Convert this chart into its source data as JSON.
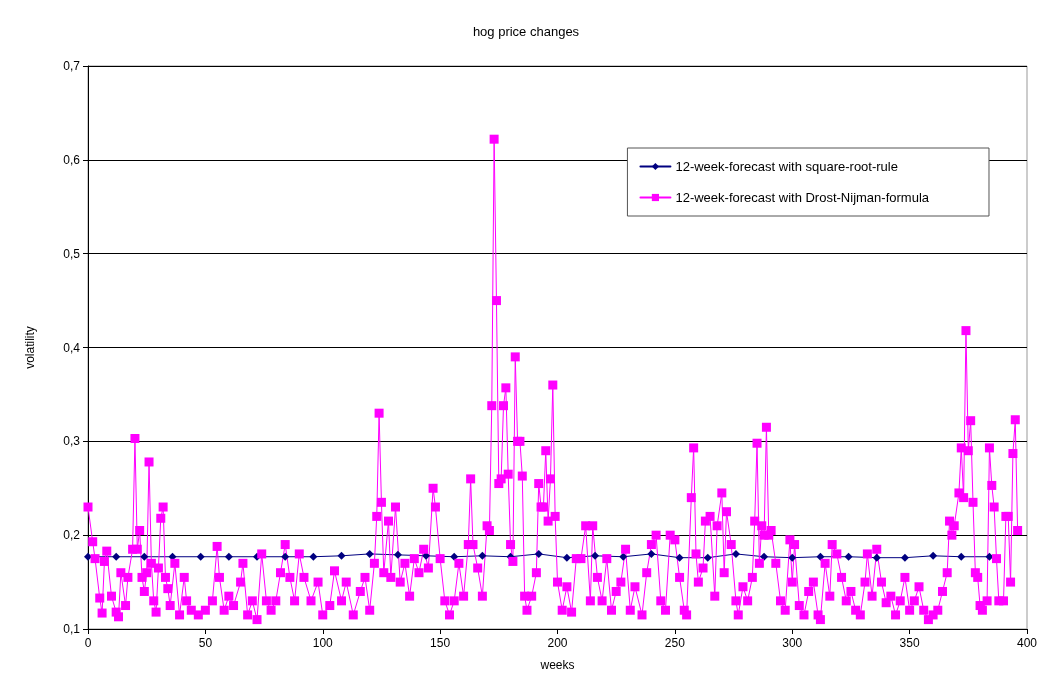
{
  "chart_data": {
    "type": "line",
    "title": "hog price changes",
    "xlabel": "weeks",
    "ylabel": "volatility",
    "xlim": [
      0,
      400
    ],
    "xticks": [
      0,
      50,
      100,
      150,
      200,
      250,
      300,
      350,
      400
    ],
    "ylim": [
      0.1,
      0.7
    ],
    "yticks": [
      {
        "value": 0.1,
        "label": "0,1"
      },
      {
        "value": 0.2,
        "label": "0,2"
      },
      {
        "value": 0.3,
        "label": "0,3"
      },
      {
        "value": 0.4,
        "label": "0,4"
      },
      {
        "value": 0.5,
        "label": "0,5"
      },
      {
        "value": 0.6,
        "label": "0,6"
      },
      {
        "value": 0.7,
        "label": "0,7"
      }
    ],
    "grid": "y",
    "legend": "top right",
    "line_style": "solid",
    "series": [
      {
        "name": "12-week-forecast with square-root-rule",
        "color": "#000080",
        "marker": "diamond",
        "x": [
          0,
          12,
          24,
          36,
          48,
          60,
          72,
          84,
          96,
          108,
          120,
          132,
          144,
          156,
          168,
          180,
          192,
          204,
          216,
          228,
          240,
          252,
          264,
          276,
          288,
          300,
          312,
          324,
          336,
          348,
          360,
          372,
          384
        ],
        "values": [
          0.177,
          0.177,
          0.177,
          0.177,
          0.177,
          0.177,
          0.177,
          0.177,
          0.177,
          0.178,
          0.18,
          0.179,
          0.178,
          0.177,
          0.178,
          0.177,
          0.18,
          0.176,
          0.178,
          0.177,
          0.18,
          0.176,
          0.176,
          0.18,
          0.177,
          0.176,
          0.177,
          0.177,
          0.176,
          0.176,
          0.178,
          0.177,
          0.177
        ]
      },
      {
        "name": "12-week-forecast with Drost-Nijman-formula",
        "color": "#ff00ff",
        "marker": "square",
        "x": [
          0,
          2,
          3,
          5,
          6,
          7,
          8,
          10,
          12,
          13,
          14,
          16,
          17,
          19,
          20,
          21,
          22,
          23,
          24,
          25,
          26,
          27,
          28,
          29,
          30,
          31,
          32,
          33,
          34,
          35,
          37,
          39,
          41,
          42,
          44,
          47,
          50,
          53,
          55,
          56,
          58,
          60,
          62,
          65,
          66,
          68,
          70,
          72,
          74,
          76,
          78,
          80,
          82,
          84,
          86,
          88,
          90,
          92,
          95,
          98,
          100,
          103,
          105,
          108,
          110,
          113,
          116,
          118,
          120,
          122,
          123,
          124,
          125,
          126,
          128,
          129,
          131,
          133,
          135,
          137,
          139,
          141,
          143,
          145,
          147,
          148,
          150,
          152,
          154,
          156,
          158,
          160,
          162,
          163,
          164,
          166,
          168,
          170,
          171,
          172,
          173,
          174,
          175,
          176,
          177,
          178,
          179,
          180,
          181,
          182,
          183,
          184,
          185,
          186,
          187,
          189,
          191,
          192,
          193,
          194,
          195,
          196,
          197,
          198,
          199,
          200,
          202,
          204,
          206,
          208,
          210,
          212,
          214,
          215,
          217,
          219,
          221,
          223,
          225,
          227,
          229,
          231,
          233,
          236,
          238,
          240,
          242,
          244,
          246,
          248,
          250,
          252,
          254,
          255,
          257,
          258,
          259,
          260,
          262,
          263,
          265,
          267,
          268,
          270,
          271,
          272,
          274,
          276,
          277,
          279,
          281,
          283,
          284,
          285,
          286,
          287,
          288,
          289,
          290,
          291,
          293,
          295,
          297,
          299,
          300,
          301,
          303,
          305,
          307,
          309,
          311,
          312,
          314,
          316,
          317,
          319,
          321,
          323,
          325,
          327,
          329,
          331,
          332,
          334,
          336,
          338,
          340,
          342,
          344,
          346,
          348,
          350,
          352,
          354,
          356,
          358,
          360,
          362,
          364,
          366,
          367,
          368,
          369,
          371,
          372,
          373,
          374,
          375,
          376,
          377,
          378,
          379,
          380,
          381,
          383,
          384,
          385,
          386,
          387,
          388,
          390,
          391,
          392,
          393,
          394,
          395,
          396
        ],
        "values": [
          0.23,
          0.193,
          0.175,
          0.133,
          0.117,
          0.172,
          0.183,
          0.135,
          0.118,
          0.113,
          0.16,
          0.125,
          0.155,
          0.185,
          0.303,
          0.185,
          0.205,
          0.155,
          0.14,
          0.16,
          0.278,
          0.17,
          0.13,
          0.118,
          0.165,
          0.218,
          0.23,
          0.155,
          0.143,
          0.125,
          0.17,
          0.115,
          0.155,
          0.13,
          0.12,
          0.115,
          0.12,
          0.13,
          0.188,
          0.155,
          0.12,
          0.135,
          0.125,
          0.15,
          0.17,
          0.115,
          0.13,
          0.11,
          0.18,
          0.13,
          0.12,
          0.13,
          0.16,
          0.19,
          0.155,
          0.13,
          0.18,
          0.155,
          0.13,
          0.15,
          0.115,
          0.125,
          0.162,
          0.13,
          0.15,
          0.115,
          0.14,
          0.155,
          0.12,
          0.17,
          0.22,
          0.33,
          0.235,
          0.16,
          0.215,
          0.155,
          0.23,
          0.15,
          0.17,
          0.135,
          0.175,
          0.16,
          0.185,
          0.165,
          0.25,
          0.23,
          0.175,
          0.13,
          0.115,
          0.13,
          0.17,
          0.135,
          0.19,
          0.26,
          0.19,
          0.165,
          0.135,
          0.21,
          0.205,
          0.338,
          0.622,
          0.45,
          0.255,
          0.26,
          0.338,
          0.357,
          0.265,
          0.19,
          0.172,
          0.39,
          0.3,
          0.3,
          0.263,
          0.135,
          0.12,
          0.135,
          0.16,
          0.255,
          0.23,
          0.23,
          0.29,
          0.215,
          0.26,
          0.36,
          0.22,
          0.15,
          0.12,
          0.145,
          0.118,
          0.175,
          0.175,
          0.21,
          0.13,
          0.21,
          0.155,
          0.13,
          0.175,
          0.12,
          0.14,
          0.15,
          0.185,
          0.12,
          0.145,
          0.115,
          0.16,
          0.19,
          0.2,
          0.13,
          0.12,
          0.2,
          0.195,
          0.155,
          0.12,
          0.115,
          0.24,
          0.293,
          0.18,
          0.15,
          0.165,
          0.215,
          0.22,
          0.135,
          0.21,
          0.245,
          0.16,
          0.225,
          0.19,
          0.13,
          0.115,
          0.145,
          0.13,
          0.155,
          0.215,
          0.298,
          0.17,
          0.21,
          0.2,
          0.315,
          0.2,
          0.205,
          0.17,
          0.13,
          0.12,
          0.195,
          0.15,
          0.19,
          0.125,
          0.115,
          0.14,
          0.15,
          0.115,
          0.11,
          0.17,
          0.135,
          0.19,
          0.18,
          0.155,
          0.13,
          0.14,
          0.12,
          0.115,
          0.15,
          0.18,
          0.135,
          0.185,
          0.15,
          0.128,
          0.135,
          0.115,
          0.13,
          0.155,
          0.12,
          0.13,
          0.145,
          0.12,
          0.11,
          0.115,
          0.12,
          0.14,
          0.16,
          0.215,
          0.2,
          0.21,
          0.245,
          0.293,
          0.24,
          0.418,
          0.29,
          0.322,
          0.235,
          0.16,
          0.155,
          0.125,
          0.12,
          0.13,
          0.293,
          0.253,
          0.23,
          0.175,
          0.13,
          0.13,
          0.22,
          0.22,
          0.15,
          0.287,
          0.323,
          0.205
        ]
      }
    ]
  }
}
